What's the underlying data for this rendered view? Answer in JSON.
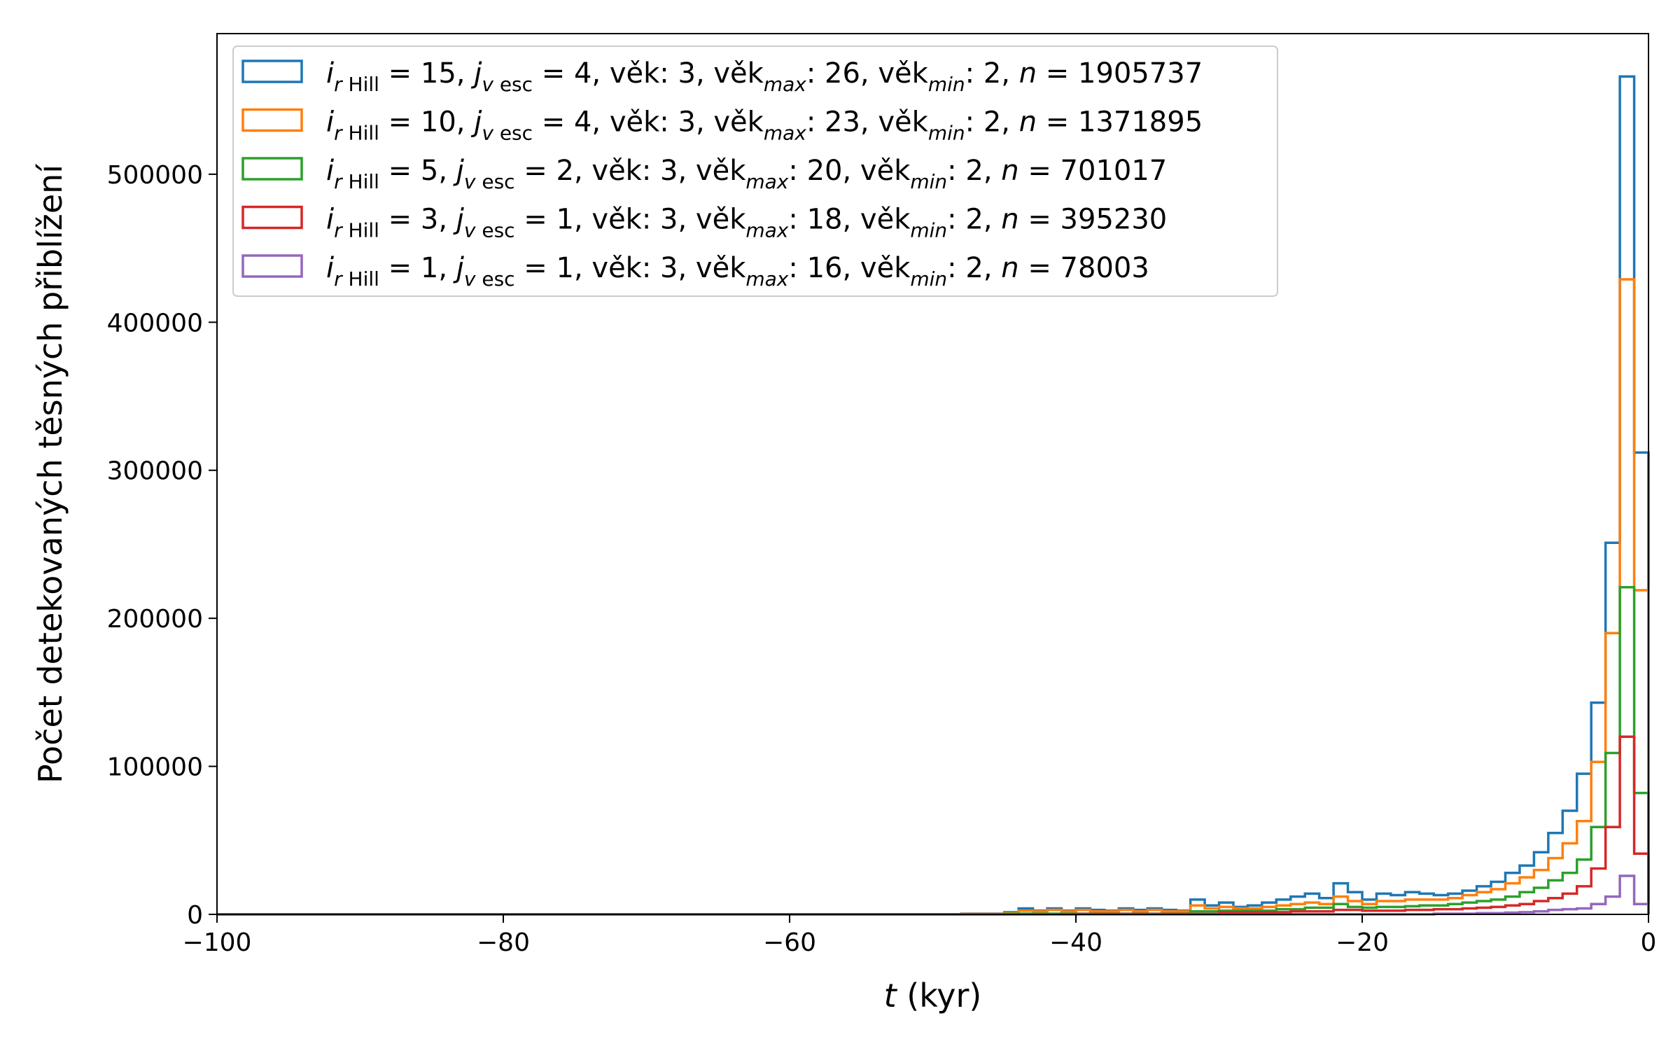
{
  "chart_data": {
    "type": "histogram",
    "xlabel_var": "t",
    "xlabel_unit": " (kyr)",
    "ylabel": "Počet detekovaných těsných přiblížení",
    "xlim": [
      -100,
      0
    ],
    "ylim": [
      0,
      595000
    ],
    "xticks": [
      -100,
      -80,
      -60,
      -40,
      -20,
      0
    ],
    "xtick_labels": [
      "−100",
      "−80",
      "−60",
      "−40",
      "−20",
      "0"
    ],
    "yticks": [
      0,
      100000,
      200000,
      300000,
      400000,
      500000
    ],
    "ytick_labels": [
      "0",
      "100000",
      "200000",
      "300000",
      "400000",
      "500000"
    ],
    "grid": false,
    "legend_position": "top-left",
    "bin_edges_start": -100,
    "bin_width": 1,
    "series": [
      {
        "legend": {
          "i": "15",
          "j": "4",
          "vek": "3",
          "vekmax": "26",
          "vekmin": "2",
          "n": "1905737"
        },
        "color": "#1f77b4",
        "values": [
          {
            "from": -100,
            "to": -48,
            "value": 0
          },
          {
            "from": -48,
            "to": -45,
            "value": 500
          },
          {
            "from": -45,
            "to": -44,
            "value": 1500
          },
          {
            "from": -44,
            "to": -43,
            "value": 4000
          },
          {
            "from": -43,
            "to": -42,
            "value": 2500
          },
          {
            "from": -42,
            "to": -41,
            "value": 4000
          },
          {
            "from": -41,
            "to": -40,
            "value": 2500
          },
          {
            "from": -40,
            "to": -39,
            "value": 4000
          },
          {
            "from": -39,
            "to": -38,
            "value": 3000
          },
          {
            "from": -38,
            "to": -37,
            "value": 2500
          },
          {
            "from": -37,
            "to": -36,
            "value": 4000
          },
          {
            "from": -36,
            "to": -35,
            "value": 3000
          },
          {
            "from": -35,
            "to": -34,
            "value": 4000
          },
          {
            "from": -34,
            "to": -33,
            "value": 3000
          },
          {
            "from": -33,
            "to": -32,
            "value": 2500
          },
          {
            "from": -32,
            "to": -31,
            "value": 10000
          },
          {
            "from": -31,
            "to": -30,
            "value": 6000
          },
          {
            "from": -30,
            "to": -29,
            "value": 8000
          },
          {
            "from": -29,
            "to": -28,
            "value": 5000
          },
          {
            "from": -28,
            "to": -27,
            "value": 6000
          },
          {
            "from": -27,
            "to": -26,
            "value": 8000
          },
          {
            "from": -26,
            "to": -25,
            "value": 10000
          },
          {
            "from": -25,
            "to": -24,
            "value": 12000
          },
          {
            "from": -24,
            "to": -23,
            "value": 14000
          },
          {
            "from": -23,
            "to": -22,
            "value": 11000
          },
          {
            "from": -22,
            "to": -21,
            "value": 21000
          },
          {
            "from": -21,
            "to": -20,
            "value": 15000
          },
          {
            "from": -20,
            "to": -19,
            "value": 10000
          },
          {
            "from": -19,
            "to": -18,
            "value": 14000
          },
          {
            "from": -18,
            "to": -17,
            "value": 13000
          },
          {
            "from": -17,
            "to": -16,
            "value": 15000
          },
          {
            "from": -16,
            "to": -15,
            "value": 14000
          },
          {
            "from": -15,
            "to": -14,
            "value": 13000
          },
          {
            "from": -14,
            "to": -13,
            "value": 14000
          },
          {
            "from": -13,
            "to": -12,
            "value": 16000
          },
          {
            "from": -12,
            "to": -11,
            "value": 19000
          },
          {
            "from": -11,
            "to": -10,
            "value": 22000
          },
          {
            "from": -10,
            "to": -9,
            "value": 28000
          },
          {
            "from": -9,
            "to": -8,
            "value": 33000
          },
          {
            "from": -8,
            "to": -7,
            "value": 42000
          },
          {
            "from": -7,
            "to": -6,
            "value": 55000
          },
          {
            "from": -6,
            "to": -5,
            "value": 70000
          },
          {
            "from": -5,
            "to": -4,
            "value": 95000
          },
          {
            "from": -4,
            "to": -3,
            "value": 143000
          },
          {
            "from": -3,
            "to": -2,
            "value": 251000
          },
          {
            "from": -2,
            "to": -1,
            "value": 566000
          },
          {
            "from": -1,
            "to": 0,
            "value": 312000
          }
        ]
      },
      {
        "legend": {
          "i": "10",
          "j": "4",
          "vek": "3",
          "vekmax": "23",
          "vekmin": "2",
          "n": "1371895"
        },
        "color": "#ff7f0e",
        "values": [
          {
            "from": -100,
            "to": -48,
            "value": 0
          },
          {
            "from": -48,
            "to": -45,
            "value": 300
          },
          {
            "from": -45,
            "to": -44,
            "value": 1000
          },
          {
            "from": -44,
            "to": -43,
            "value": 2500
          },
          {
            "from": -43,
            "to": -42,
            "value": 2000
          },
          {
            "from": -42,
            "to": -41,
            "value": 3000
          },
          {
            "from": -41,
            "to": -40,
            "value": 2000
          },
          {
            "from": -40,
            "to": -39,
            "value": 3000
          },
          {
            "from": -39,
            "to": -38,
            "value": 2000
          },
          {
            "from": -38,
            "to": -37,
            "value": 2000
          },
          {
            "from": -37,
            "to": -36,
            "value": 3000
          },
          {
            "from": -36,
            "to": -35,
            "value": 2000
          },
          {
            "from": -35,
            "to": -34,
            "value": 3000
          },
          {
            "from": -34,
            "to": -33,
            "value": 2000
          },
          {
            "from": -33,
            "to": -32,
            "value": 2000
          },
          {
            "from": -32,
            "to": -31,
            "value": 6000
          },
          {
            "from": -31,
            "to": -30,
            "value": 4000
          },
          {
            "from": -30,
            "to": -29,
            "value": 5000
          },
          {
            "from": -29,
            "to": -28,
            "value": 4000
          },
          {
            "from": -28,
            "to": -27,
            "value": 4000
          },
          {
            "from": -27,
            "to": -26,
            "value": 5000
          },
          {
            "from": -26,
            "to": -25,
            "value": 6000
          },
          {
            "from": -25,
            "to": -24,
            "value": 7000
          },
          {
            "from": -24,
            "to": -23,
            "value": 8000
          },
          {
            "from": -23,
            "to": -22,
            "value": 7000
          },
          {
            "from": -22,
            "to": -21,
            "value": 12000
          },
          {
            "from": -21,
            "to": -20,
            "value": 9000
          },
          {
            "from": -20,
            "to": -19,
            "value": 7000
          },
          {
            "from": -19,
            "to": -18,
            "value": 9000
          },
          {
            "from": -18,
            "to": -17,
            "value": 9000
          },
          {
            "from": -17,
            "to": -16,
            "value": 10000
          },
          {
            "from": -16,
            "to": -15,
            "value": 10000
          },
          {
            "from": -15,
            "to": -14,
            "value": 10000
          },
          {
            "from": -14,
            "to": -13,
            "value": 11000
          },
          {
            "from": -13,
            "to": -12,
            "value": 13000
          },
          {
            "from": -12,
            "to": -11,
            "value": 15000
          },
          {
            "from": -11,
            "to": -10,
            "value": 17000
          },
          {
            "from": -10,
            "to": -9,
            "value": 21000
          },
          {
            "from": -9,
            "to": -8,
            "value": 25000
          },
          {
            "from": -8,
            "to": -7,
            "value": 30000
          },
          {
            "from": -7,
            "to": -6,
            "value": 38000
          },
          {
            "from": -6,
            "to": -5,
            "value": 48000
          },
          {
            "from": -5,
            "to": -4,
            "value": 63000
          },
          {
            "from": -4,
            "to": -3,
            "value": 103000
          },
          {
            "from": -3,
            "to": -2,
            "value": 190000
          },
          {
            "from": -2,
            "to": -1,
            "value": 429000
          },
          {
            "from": -1,
            "to": 0,
            "value": 219000
          }
        ]
      },
      {
        "legend": {
          "i": " 5",
          "j": "2",
          "vek": "3",
          "vekmax": "20",
          "vekmin": "2",
          "n": "701017"
        },
        "color": "#2ca02c",
        "values": [
          {
            "from": -100,
            "to": -45,
            "value": 0
          },
          {
            "from": -45,
            "to": -32,
            "value": 500
          },
          {
            "from": -32,
            "to": -30,
            "value": 2000
          },
          {
            "from": -30,
            "to": -26,
            "value": 2500
          },
          {
            "from": -26,
            "to": -24,
            "value": 3500
          },
          {
            "from": -24,
            "to": -22,
            "value": 4500
          },
          {
            "from": -22,
            "to": -21,
            "value": 7000
          },
          {
            "from": -21,
            "to": -20,
            "value": 5000
          },
          {
            "from": -20,
            "to": -19,
            "value": 4500
          },
          {
            "from": -19,
            "to": -18,
            "value": 5000
          },
          {
            "from": -18,
            "to": -17,
            "value": 5000
          },
          {
            "from": -17,
            "to": -16,
            "value": 5500
          },
          {
            "from": -16,
            "to": -15,
            "value": 6000
          },
          {
            "from": -15,
            "to": -14,
            "value": 6000
          },
          {
            "from": -14,
            "to": -13,
            "value": 7000
          },
          {
            "from": -13,
            "to": -12,
            "value": 8000
          },
          {
            "from": -12,
            "to": -11,
            "value": 9000
          },
          {
            "from": -11,
            "to": -10,
            "value": 10000
          },
          {
            "from": -10,
            "to": -9,
            "value": 12000
          },
          {
            "from": -9,
            "to": -8,
            "value": 15000
          },
          {
            "from": -8,
            "to": -7,
            "value": 18000
          },
          {
            "from": -7,
            "to": -6,
            "value": 23000
          },
          {
            "from": -6,
            "to": -5,
            "value": 28000
          },
          {
            "from": -5,
            "to": -4,
            "value": 37000
          },
          {
            "from": -4,
            "to": -3,
            "value": 59000
          },
          {
            "from": -3,
            "to": -2,
            "value": 109000
          },
          {
            "from": -2,
            "to": -1,
            "value": 221000
          },
          {
            "from": -1,
            "to": 0,
            "value": 82000
          }
        ]
      },
      {
        "legend": {
          "i": " 3",
          "j": "1",
          "vek": "3",
          "vekmax": "18",
          "vekmin": "2",
          "n": "395230"
        },
        "color": "#d62728",
        "values": [
          {
            "from": -100,
            "to": -40,
            "value": 0
          },
          {
            "from": -40,
            "to": -30,
            "value": 300
          },
          {
            "from": -30,
            "to": -25,
            "value": 1500
          },
          {
            "from": -25,
            "to": -22,
            "value": 2000
          },
          {
            "from": -22,
            "to": -20,
            "value": 3000
          },
          {
            "from": -20,
            "to": -17,
            "value": 2500
          },
          {
            "from": -17,
            "to": -15,
            "value": 3000
          },
          {
            "from": -15,
            "to": -13,
            "value": 3500
          },
          {
            "from": -13,
            "to": -12,
            "value": 4000
          },
          {
            "from": -12,
            "to": -11,
            "value": 4500
          },
          {
            "from": -11,
            "to": -10,
            "value": 5000
          },
          {
            "from": -10,
            "to": -9,
            "value": 6000
          },
          {
            "from": -9,
            "to": -8,
            "value": 7000
          },
          {
            "from": -8,
            "to": -7,
            "value": 9000
          },
          {
            "from": -7,
            "to": -6,
            "value": 11000
          },
          {
            "from": -6,
            "to": -5,
            "value": 14000
          },
          {
            "from": -5,
            "to": -4,
            "value": 19000
          },
          {
            "from": -4,
            "to": -3,
            "value": 31000
          },
          {
            "from": -3,
            "to": -2,
            "value": 59000
          },
          {
            "from": -2,
            "to": -1,
            "value": 120000
          },
          {
            "from": -1,
            "to": 0,
            "value": 41000
          }
        ]
      },
      {
        "legend": {
          "i": " 1",
          "j": "1",
          "vek": "3",
          "vekmax": "16",
          "vekmin": "2",
          "n": "78003"
        },
        "color": "#9467bd",
        "values": [
          {
            "from": -100,
            "to": -15,
            "value": 0
          },
          {
            "from": -15,
            "to": -12,
            "value": 500
          },
          {
            "from": -12,
            "to": -10,
            "value": 800
          },
          {
            "from": -10,
            "to": -9,
            "value": 1200
          },
          {
            "from": -9,
            "to": -8,
            "value": 1500
          },
          {
            "from": -8,
            "to": -7,
            "value": 2000
          },
          {
            "from": -7,
            "to": -6,
            "value": 3000
          },
          {
            "from": -6,
            "to": -5,
            "value": 3500
          },
          {
            "from": -5,
            "to": -4,
            "value": 4000
          },
          {
            "from": -4,
            "to": -3,
            "value": 7000
          },
          {
            "from": -3,
            "to": -2,
            "value": 12000
          },
          {
            "from": -2,
            "to": -1,
            "value": 26000
          },
          {
            "from": -1,
            "to": 0,
            "value": 7000
          }
        ]
      }
    ]
  }
}
